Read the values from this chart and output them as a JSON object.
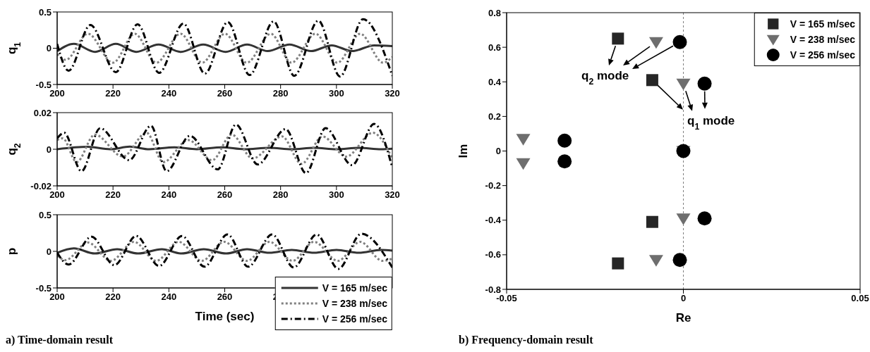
{
  "chart_data": [
    {
      "type": "line",
      "ylabel": "q$_{1}$",
      "xlim": [
        200,
        320
      ],
      "xticks": [
        200,
        220,
        240,
        260,
        280,
        300,
        320
      ],
      "ylim": [
        -0.5,
        0.5
      ],
      "yticks": [
        -0.5,
        0,
        0.5
      ],
      "grid": false,
      "series": [
        {
          "color": "#333333",
          "line_style": "solid",
          "x": [
            200,
            206,
            213.6,
            221,
            228.3,
            236.3,
            244.3,
            252.3,
            260.3,
            268,
            275.4,
            283.2,
            290.9,
            298.3,
            305.6,
            313.5,
            320
          ],
          "values": [
            -0.04,
            0.06,
            -0.05,
            0.06,
            -0.05,
            0.05,
            -0.05,
            0.05,
            -0.05,
            0.05,
            -0.04,
            0.05,
            -0.04,
            0.04,
            -0.04,
            0.04,
            0.03
          ]
        },
        {
          "color": "#808080",
          "line_style": "dotted",
          "x": [
            200,
            203.1,
            211,
            220,
            227.8,
            235.5,
            244.2,
            251.9,
            260.1,
            267.9,
            276.5,
            283.9,
            292.5,
            300.3,
            308.5,
            316.7,
            320
          ],
          "values": [
            -0.08,
            -0.16,
            0.2,
            -0.2,
            0.2,
            -0.2,
            0.2,
            -0.2,
            0.2,
            -0.2,
            0.2,
            -0.2,
            0.2,
            -0.2,
            0.2,
            -0.2,
            -0.12
          ]
        },
        {
          "color": "#000000",
          "line_style": "dashed",
          "x": [
            200,
            204.1,
            211.9,
            221,
            228.8,
            236.5,
            245.2,
            252.9,
            261.1,
            268.9,
            277.5,
            284.9,
            293.5,
            301.3,
            309.5,
            320
          ],
          "values": [
            0.06,
            -0.31,
            0.32,
            -0.33,
            0.33,
            -0.34,
            0.34,
            -0.35,
            0.36,
            -0.37,
            0.37,
            -0.38,
            0.38,
            -0.39,
            0.4,
            -0.38
          ]
        }
      ]
    },
    {
      "type": "line",
      "ylabel": "q$_{2}$",
      "xlim": [
        200,
        320
      ],
      "xticks": [
        200,
        220,
        240,
        260,
        280,
        300,
        320
      ],
      "ylim": [
        -0.02,
        0.02
      ],
      "yticks": [
        -0.02,
        0,
        0.02
      ],
      "grid": false,
      "series": [
        {
          "color": "#333333",
          "line_style": "solid",
          "x": [
            200,
            211,
            219,
            226,
            233,
            242,
            250,
            259,
            267,
            276,
            284,
            292,
            300,
            308,
            316,
            320
          ],
          "values": [
            0,
            0.0013,
            0,
            0.0014,
            0,
            0.0011,
            0,
            0.0011,
            0,
            0.0008,
            0,
            0.0008,
            0,
            0.0008,
            0,
            0.0003
          ]
        },
        {
          "color": "#808080",
          "line_style": "dotted",
          "x": [
            200,
            202,
            207,
            213.5,
            223.5,
            232,
            238,
            247,
            255.5,
            262.5,
            270,
            280.5,
            287.5,
            295,
            303.5,
            313,
            320
          ],
          "values": [
            0.005,
            0.006,
            -0.007,
            0.008,
            -0.004,
            0.009,
            -0.007,
            0.005,
            -0.006,
            0.008,
            -0.005,
            0.007,
            -0.008,
            0.007,
            -0.004,
            0.009,
            -0.005
          ]
        },
        {
          "color": "#000000",
          "line_style": "dashed",
          "x": [
            200,
            202.5,
            208.7,
            215.4,
            225.8,
            233.6,
            239.2,
            247.5,
            257.5,
            264,
            271.8,
            281.8,
            289.1,
            296.1,
            305.6,
            313.5,
            320
          ],
          "values": [
            0.006,
            0.009,
            -0.012,
            0.0115,
            -0.006,
            0.0128,
            -0.012,
            0.0073,
            -0.011,
            0.0135,
            -0.0083,
            0.011,
            -0.013,
            0.0115,
            -0.0087,
            0.0138,
            -0.01
          ]
        }
      ]
    },
    {
      "type": "line",
      "ylabel": "p",
      "xlabel": "Time (sec)",
      "xlim": [
        200,
        320
      ],
      "xticks": [
        200,
        220,
        240,
        260,
        280
      ],
      "ylim": [
        -0.5,
        0.5
      ],
      "yticks": [
        -0.5,
        0,
        0.5
      ],
      "grid": false,
      "legend": "bottom right",
      "annotations": [
        "a) Time-domain result"
      ],
      "series": [
        {
          "name": "V = 165 m/sec",
          "color": "#333333",
          "line_style": "solid",
          "x": [
            200,
            206,
            213.5,
            221.5,
            229,
            237.5,
            244.5,
            252.5,
            260.5,
            268,
            276,
            284,
            292,
            300,
            308,
            316,
            320
          ],
          "values": [
            -0.02,
            0.04,
            -0.03,
            0.03,
            -0.03,
            0.03,
            -0.03,
            0.03,
            -0.03,
            0.03,
            -0.02,
            0.02,
            -0.02,
            0.02,
            -0.02,
            0.02,
            0.01
          ]
        },
        {
          "name": "V = 238 m/sec",
          "color": "#808080",
          "line_style": "dotted",
          "x": [
            200,
            203,
            211,
            219.3,
            227.5,
            235.5,
            243.5,
            251.8,
            259.8,
            268,
            276,
            284.3,
            292,
            300.5,
            308.5,
            316.5,
            320
          ],
          "values": [
            -0.06,
            -0.12,
            0.12,
            -0.13,
            0.13,
            -0.13,
            0.13,
            -0.13,
            0.13,
            -0.13,
            0.13,
            -0.13,
            0.13,
            -0.13,
            0.13,
            -0.13,
            -0.1
          ]
        },
        {
          "name": "V = 256 m/sec",
          "color": "#000000",
          "line_style": "dashed",
          "x": [
            200,
            204.1,
            212.3,
            220.5,
            228.3,
            236.5,
            244.7,
            252.7,
            261,
            268.4,
            277,
            284.7,
            292.9,
            300.7,
            308.9,
            320
          ],
          "values": [
            -0.02,
            -0.18,
            0.2,
            -0.19,
            0.21,
            -0.2,
            0.21,
            -0.21,
            0.23,
            -0.21,
            0.23,
            -0.22,
            0.23,
            -0.24,
            0.24,
            -0.22
          ]
        }
      ]
    },
    {
      "type": "scatter",
      "xlabel": "Re",
      "ylabel": "Im",
      "xlim": [
        -0.05,
        0.05
      ],
      "xticks": [
        -0.05,
        0,
        0.05
      ],
      "ylim": [
        -0.8,
        0.8
      ],
      "yticks": [
        -0.8,
        -0.6,
        -0.4,
        -0.2,
        0,
        0.2,
        0.4,
        0.6,
        0.8
      ],
      "grid": false,
      "legend": "top right",
      "ref_lines": [
        {
          "axis": "x",
          "value": 0,
          "color": "#808080",
          "line_style": "dotted"
        }
      ],
      "annotations": [
        {
          "text": "q$_{2}$ mode",
          "x": -0.0185,
          "y": 0.65
        },
        {
          "text": "q$_{1}$ mode",
          "x": 0,
          "y": 0.39
        },
        "b) Frequency-domain result"
      ],
      "series": [
        {
          "name": "V = 165 m/sec",
          "color": "#262626",
          "marker": "square",
          "x": [
            -0.0185,
            -0.0088,
            -0.0088,
            -0.0185
          ],
          "values": [
            0.65,
            0.41,
            -0.41,
            -0.65
          ]
        },
        {
          "name": "V = 238 m/sec",
          "color": "#6e6e6e",
          "marker": "triangle",
          "x": [
            -0.0077,
            0,
            -0.0453,
            -0.0453,
            0,
            0,
            -0.0077
          ],
          "values": [
            0.63,
            0.39,
            0.07,
            -0.07,
            0,
            -0.39,
            -0.63
          ]
        },
        {
          "name": "V = 256 m/sec",
          "color": "#000000",
          "marker": "circle",
          "x": [
            -0.001,
            0.006,
            -0.0336,
            -0.0336,
            0,
            0.006,
            -0.001
          ],
          "values": [
            0.63,
            0.39,
            0.06,
            -0.06,
            0,
            -0.39,
            -0.63
          ]
        }
      ]
    }
  ]
}
